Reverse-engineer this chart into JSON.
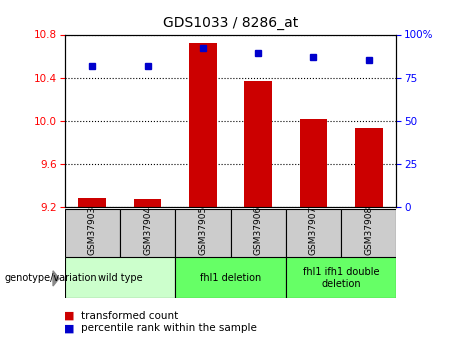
{
  "title": "GDS1033 / 8286_at",
  "samples": [
    "GSM37903",
    "GSM37904",
    "GSM37905",
    "GSM37906",
    "GSM37907",
    "GSM37908"
  ],
  "bar_values": [
    9.28,
    9.27,
    10.72,
    10.37,
    10.02,
    9.93
  ],
  "percentile_values": [
    82,
    82,
    92,
    89,
    87,
    85
  ],
  "bar_color": "#cc0000",
  "dot_color": "#0000cc",
  "ylim_left": [
    9.2,
    10.8
  ],
  "ylim_right": [
    0,
    100
  ],
  "yticks_left": [
    9.2,
    9.6,
    10.0,
    10.4,
    10.8
  ],
  "yticks_right": [
    0,
    25,
    50,
    75,
    100
  ],
  "ytick_labels_right": [
    "0",
    "25",
    "50",
    "75",
    "100%"
  ],
  "group_positions": [
    [
      0,
      1,
      "wild type",
      "#ccffcc"
    ],
    [
      2,
      3,
      "fhl1 deletion",
      "#66ff66"
    ],
    [
      4,
      5,
      "fhl1 ifh1 double\ndeletion",
      "#66ff66"
    ]
  ],
  "legend_bar_label": "transformed count",
  "legend_dot_label": "percentile rank within the sample",
  "genotype_label": "genotype/variation",
  "bar_width": 0.5,
  "baseline": 9.2,
  "sample_box_color": "#cccccc",
  "bg_color": "#ffffff"
}
